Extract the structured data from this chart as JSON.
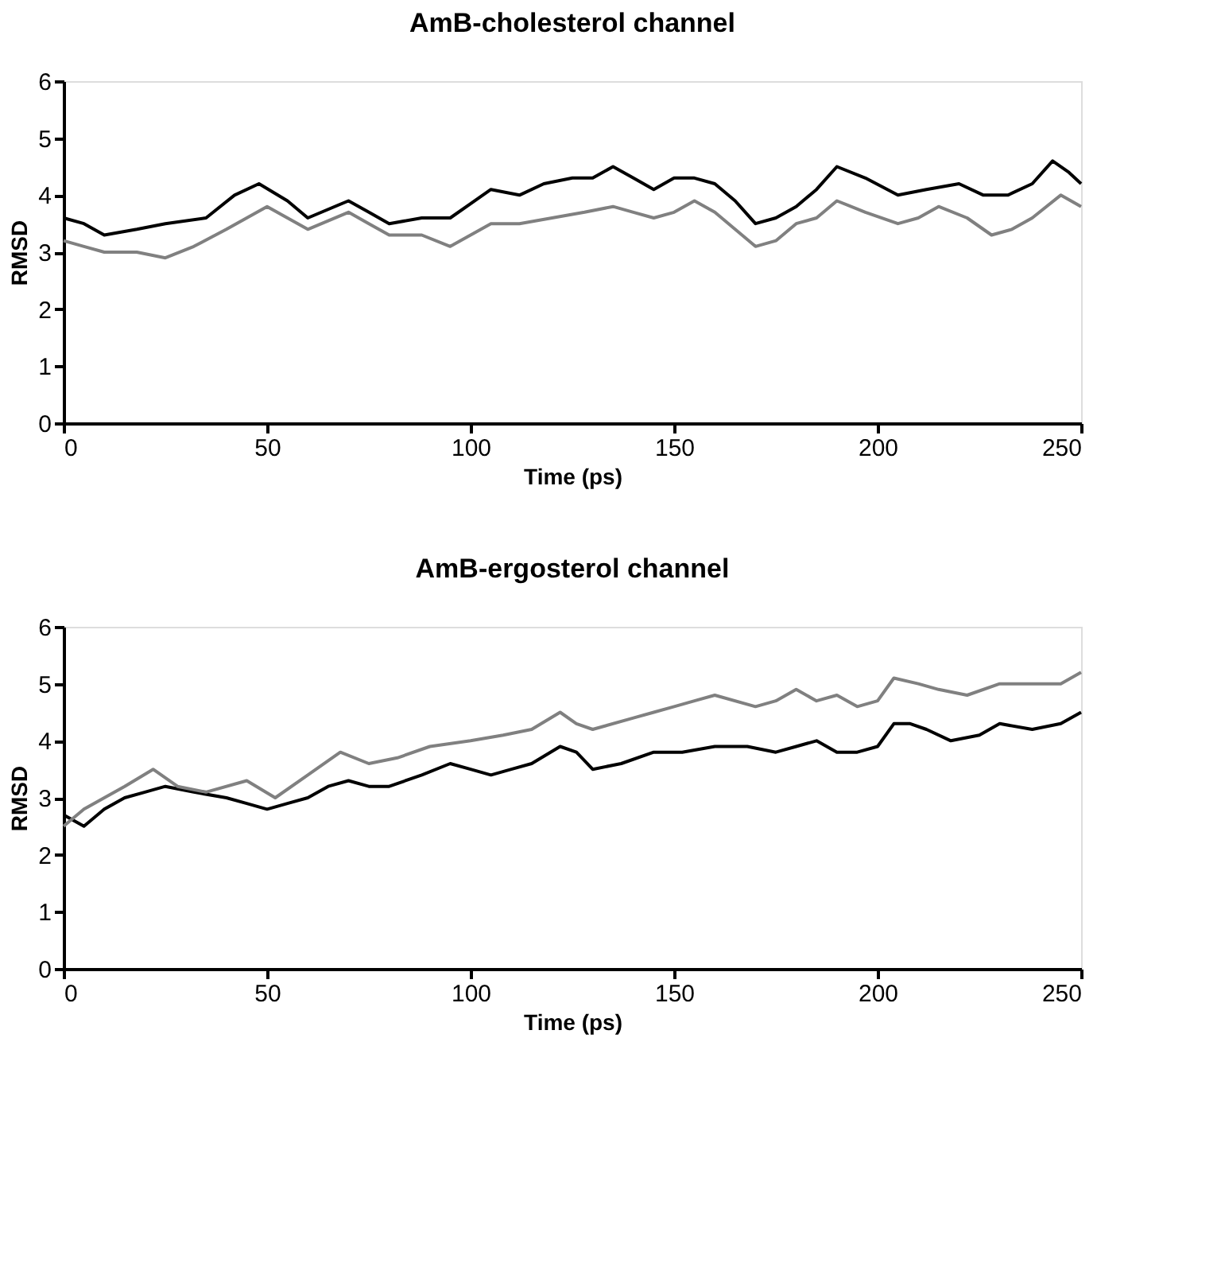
{
  "chart_data": [
    {
      "type": "line",
      "title": "AmB-cholesterol channel",
      "xlabel": "Time (ps)",
      "ylabel": "RMSD",
      "xlim": [
        0,
        250
      ],
      "xticks": [
        0,
        50,
        100,
        150,
        200,
        250
      ],
      "ylim": [
        0,
        6
      ],
      "yticks": [
        0,
        1,
        2,
        3,
        4,
        5,
        6
      ],
      "grid": false,
      "line_style": "solid",
      "series": [
        {
          "color": "#000000",
          "x": [
            0,
            5,
            10,
            18,
            25,
            35,
            42,
            48,
            55,
            60,
            70,
            75,
            80,
            88,
            95,
            105,
            112,
            118,
            125,
            130,
            135,
            140,
            145,
            150,
            155,
            160,
            165,
            170,
            175,
            180,
            185,
            190,
            197,
            205,
            212,
            220,
            226,
            232,
            238,
            243,
            247,
            250
          ],
          "values": [
            3.6,
            3.5,
            3.3,
            3.4,
            3.5,
            3.6,
            4.0,
            4.2,
            3.9,
            3.6,
            3.9,
            3.7,
            3.5,
            3.6,
            3.6,
            4.1,
            4.0,
            4.2,
            4.3,
            4.3,
            4.5,
            4.3,
            4.1,
            4.3,
            4.3,
            4.2,
            3.9,
            3.5,
            3.6,
            3.8,
            4.1,
            4.5,
            4.3,
            4.0,
            4.1,
            4.2,
            4.0,
            4.0,
            4.2,
            4.6,
            4.4,
            4.2
          ]
        },
        {
          "color": "#808080",
          "x": [
            0,
            5,
            10,
            18,
            25,
            32,
            40,
            45,
            50,
            55,
            60,
            70,
            75,
            80,
            88,
            95,
            105,
            112,
            120,
            128,
            135,
            140,
            145,
            150,
            155,
            160,
            165,
            170,
            175,
            180,
            185,
            190,
            197,
            205,
            210,
            215,
            222,
            228,
            233,
            238,
            245,
            250
          ],
          "values": [
            3.2,
            3.1,
            3.0,
            3.0,
            2.9,
            3.1,
            3.4,
            3.6,
            3.8,
            3.6,
            3.4,
            3.7,
            3.5,
            3.3,
            3.3,
            3.1,
            3.5,
            3.5,
            3.6,
            3.7,
            3.8,
            3.7,
            3.6,
            3.7,
            3.9,
            3.7,
            3.4,
            3.1,
            3.2,
            3.5,
            3.6,
            3.9,
            3.7,
            3.5,
            3.6,
            3.8,
            3.6,
            3.3,
            3.4,
            3.6,
            4.0,
            3.8
          ]
        }
      ]
    },
    {
      "type": "line",
      "title": "AmB-ergosterol channel",
      "xlabel": "Time (ps)",
      "ylabel": "RMSD",
      "xlim": [
        0,
        250
      ],
      "xticks": [
        0,
        50,
        100,
        150,
        200,
        250
      ],
      "ylim": [
        0,
        6
      ],
      "yticks": [
        0,
        1,
        2,
        3,
        4,
        5,
        6
      ],
      "grid": false,
      "line_style": "solid",
      "series": [
        {
          "color": "#000000",
          "x": [
            0,
            5,
            10,
            15,
            20,
            25,
            32,
            40,
            45,
            50,
            55,
            60,
            65,
            70,
            75,
            80,
            88,
            95,
            100,
            105,
            110,
            115,
            122,
            126,
            130,
            137,
            145,
            152,
            160,
            168,
            175,
            180,
            185,
            190,
            195,
            200,
            204,
            208,
            212,
            218,
            225,
            230,
            238,
            245,
            250
          ],
          "values": [
            2.7,
            2.5,
            2.8,
            3.0,
            3.1,
            3.2,
            3.1,
            3.0,
            2.9,
            2.8,
            2.9,
            3.0,
            3.2,
            3.3,
            3.2,
            3.2,
            3.4,
            3.6,
            3.5,
            3.4,
            3.5,
            3.6,
            3.9,
            3.8,
            3.5,
            3.6,
            3.8,
            3.8,
            3.9,
            3.9,
            3.8,
            3.9,
            4.0,
            3.8,
            3.8,
            3.9,
            4.3,
            4.3,
            4.2,
            4.0,
            4.1,
            4.3,
            4.2,
            4.3,
            4.5
          ]
        },
        {
          "color": "#808080",
          "x": [
            0,
            5,
            10,
            15,
            22,
            28,
            35,
            45,
            52,
            60,
            68,
            75,
            82,
            90,
            100,
            108,
            115,
            122,
            126,
            130,
            140,
            145,
            150,
            155,
            160,
            170,
            175,
            180,
            185,
            190,
            195,
            200,
            204,
            210,
            215,
            222,
            230,
            238,
            245,
            250
          ],
          "values": [
            2.5,
            2.8,
            3.0,
            3.2,
            3.5,
            3.2,
            3.1,
            3.3,
            3.0,
            3.4,
            3.8,
            3.6,
            3.7,
            3.9,
            4.0,
            4.1,
            4.2,
            4.5,
            4.3,
            4.2,
            4.4,
            4.5,
            4.6,
            4.7,
            4.8,
            4.6,
            4.7,
            4.9,
            4.7,
            4.8,
            4.6,
            4.7,
            5.1,
            5.0,
            4.9,
            4.8,
            5.0,
            5.0,
            5.0,
            5.2
          ]
        }
      ]
    }
  ]
}
